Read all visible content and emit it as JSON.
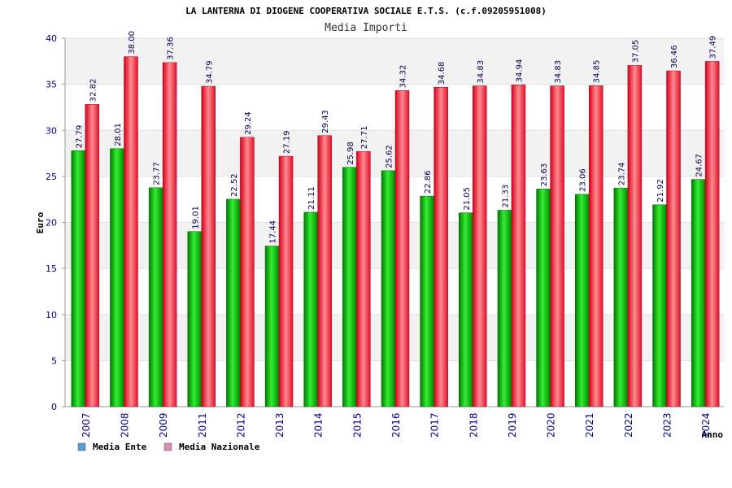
{
  "chart_data": {
    "type": "bar",
    "title": "LA LANTERNA DI DIOGENE COOPERATIVA SOCIALE E.T.S. (c.f.09205951008)",
    "subtitle": "Media Importi",
    "xlabel": "Anno",
    "ylabel": "Euro",
    "ylim": [
      0,
      40
    ],
    "yticks": [
      0,
      5,
      10,
      15,
      20,
      25,
      30,
      35,
      40
    ],
    "ytick_labels": [
      "0",
      "5",
      "10",
      "15",
      "20",
      "25",
      "30",
      "35",
      "40"
    ],
    "categories": [
      "2007",
      "2008",
      "2009",
      "2011",
      "2012",
      "2013",
      "2014",
      "2015",
      "2016",
      "2017",
      "2018",
      "2019",
      "2020",
      "2021",
      "2022",
      "2023",
      "2024"
    ],
    "series": [
      {
        "name": "Media Ente",
        "color": "#00aa00",
        "legend_color": "#5b9bd5",
        "values": [
          27.79,
          28.01,
          23.77,
          19.01,
          22.52,
          17.44,
          21.11,
          25.98,
          25.62,
          22.86,
          21.05,
          21.33,
          23.63,
          23.06,
          23.74,
          21.92,
          24.67
        ],
        "labels": [
          "27.79",
          "28.01",
          "23.77",
          "19.01",
          "22.52",
          "17.44",
          "21.11",
          "25.98",
          "25.62",
          "22.86",
          "21.05",
          "21.33",
          "23.63",
          "23.06",
          "23.74",
          "21.92",
          "24.67"
        ]
      },
      {
        "name": "Media Nazionale",
        "color": "#e8202a",
        "legend_color": "#d98cb3",
        "values": [
          32.82,
          38.0,
          37.36,
          34.79,
          29.24,
          27.19,
          29.43,
          27.71,
          34.32,
          34.68,
          34.83,
          34.94,
          34.83,
          34.85,
          37.05,
          36.46,
          37.49
        ],
        "labels": [
          "32.82",
          "38.00",
          "37.36",
          "34.79",
          "29.24",
          "27.19",
          "29.43",
          "27.71",
          "34.32",
          "34.68",
          "34.83",
          "34.94",
          "34.83",
          "34.85",
          "37.05",
          "36.46",
          "37.49"
        ]
      }
    ],
    "grid": true,
    "legend_position": "bottom-left"
  }
}
